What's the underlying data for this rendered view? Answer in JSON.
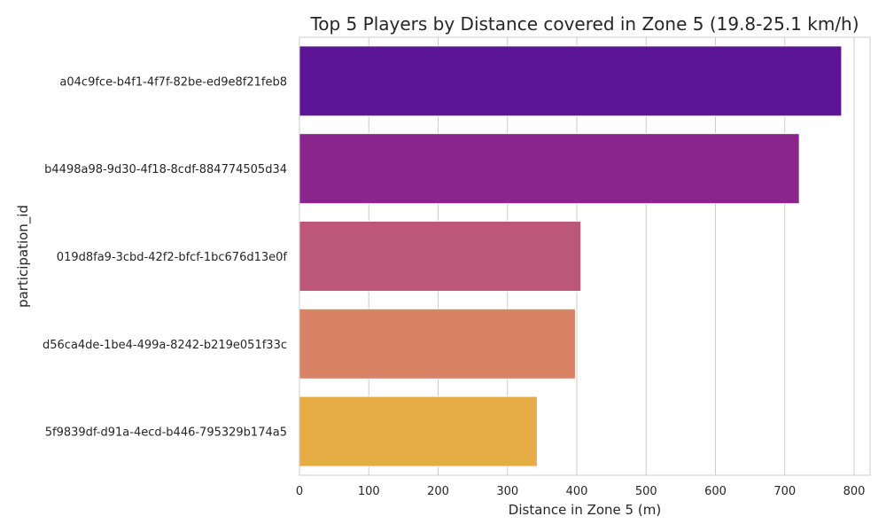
{
  "chart_data": {
    "type": "bar",
    "orientation": "horizontal",
    "title": "Top 5 Players by Distance covered in Zone 5 (19.8-25.1 km/h)",
    "xlabel": "Distance in Zone 5 (m)",
    "ylabel": "participation_id",
    "categories": [
      "a04c9fce-b4f1-4f7f-82be-ed9e8f21feb8",
      "b4498a98-9d30-4f18-8cdf-884774505d34",
      "019d8fa9-3cbd-42f2-bfcf-1bc676d13e0f",
      "d56ca4de-1be4-499a-8242-b219e051f33c",
      "5f9839df-d91a-4ecd-b446-795329b174a5"
    ],
    "values": [
      782,
      721,
      406,
      398,
      343
    ],
    "colors": [
      "#5c1594",
      "#8a258e",
      "#bc5779",
      "#da8266",
      "#e6ad47"
    ],
    "xlim": [
      0,
      823
    ],
    "xticks": [
      0,
      100,
      200,
      300,
      400,
      500,
      600,
      700,
      800
    ],
    "grid": true,
    "legend": "none"
  }
}
